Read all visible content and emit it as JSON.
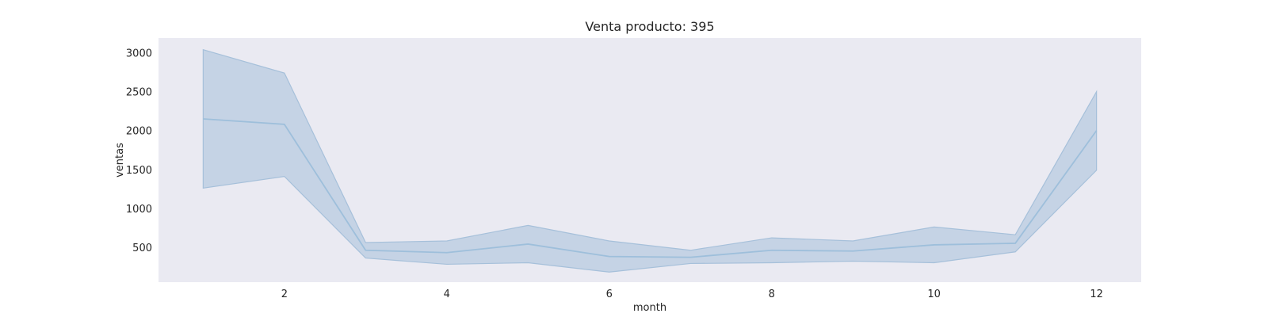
{
  "chart_data": {
    "type": "line",
    "title": "Venta producto: 395",
    "xlabel": "month",
    "ylabel": "ventas",
    "xlim": [
      0.45,
      12.55
    ],
    "ylim": [
      50,
      3190
    ],
    "xticks": [
      2,
      4,
      6,
      8,
      10,
      12
    ],
    "yticks": [
      500,
      1000,
      1500,
      2000,
      2500,
      3000
    ],
    "grid": false,
    "background": "#eaeaf2",
    "line_color": "#9ebfdb",
    "band_color": "#a6c0da",
    "x": [
      1,
      2,
      3,
      4,
      5,
      6,
      7,
      8,
      9,
      10,
      11,
      12
    ],
    "series": [
      {
        "values": [
          2150,
          2080,
          460,
          430,
          540,
          380,
          370,
          460,
          450,
          530,
          550,
          2000
        ],
        "lower": [
          1260,
          1410,
          360,
          280,
          300,
          180,
          290,
          300,
          320,
          300,
          440,
          1490
        ],
        "upper": [
          3040,
          2740,
          560,
          580,
          780,
          580,
          460,
          620,
          580,
          760,
          660,
          2500
        ]
      }
    ]
  }
}
